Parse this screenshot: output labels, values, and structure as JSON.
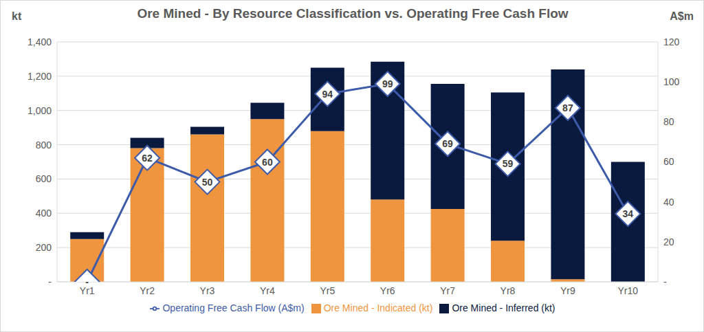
{
  "chart_data": {
    "type": "bar",
    "title": "Ore Mined - By Resource Classification vs. Operating Free Cash Flow",
    "ylabel": "kt",
    "y2label": "A$m",
    "categories": [
      "Yr1",
      "Yr2",
      "Yr3",
      "Yr4",
      "Yr5",
      "Yr6",
      "Yr7",
      "Yr8",
      "Yr9",
      "Yr10"
    ],
    "stacked": true,
    "grid": true,
    "legend": "bottom",
    "ylim": [
      0,
      1400
    ],
    "yticks": [
      {
        "value": 0,
        "label": "-"
      },
      200,
      400,
      600,
      800,
      {
        "value": 1000,
        "label": "1,000"
      },
      {
        "value": 1200,
        "label": "1,200"
      },
      {
        "value": 1400,
        "label": "1,400"
      }
    ],
    "y2lim": [
      0,
      120
    ],
    "y2ticks": [
      {
        "value": 0,
        "label": "-"
      },
      20,
      40,
      60,
      80,
      100,
      120
    ],
    "series": [
      {
        "name": "Ore Mined - Indicated (kt)",
        "type": "bar",
        "color": "#f0953f",
        "values": [
          250,
          780,
          860,
          950,
          880,
          480,
          425,
          240,
          15,
          0
        ]
      },
      {
        "name": "Ore Mined - Inferred (kt)",
        "type": "bar",
        "color": "#0a1a3f",
        "values": [
          40,
          60,
          45,
          95,
          370,
          805,
          730,
          865,
          1225,
          700
        ]
      },
      {
        "name": "Operating Free Cash Flow (A$m)",
        "type": "line",
        "axis": "y2",
        "color": "#3d5ba9",
        "marker": "diamond",
        "data_labels": true,
        "values": [
          0,
          62,
          50,
          60,
          94,
          99,
          69,
          59,
          87,
          34
        ],
        "value_labels": [
          "-",
          "62",
          "50",
          "60",
          "94",
          "99",
          "69",
          "59",
          "87",
          "34"
        ]
      }
    ]
  }
}
